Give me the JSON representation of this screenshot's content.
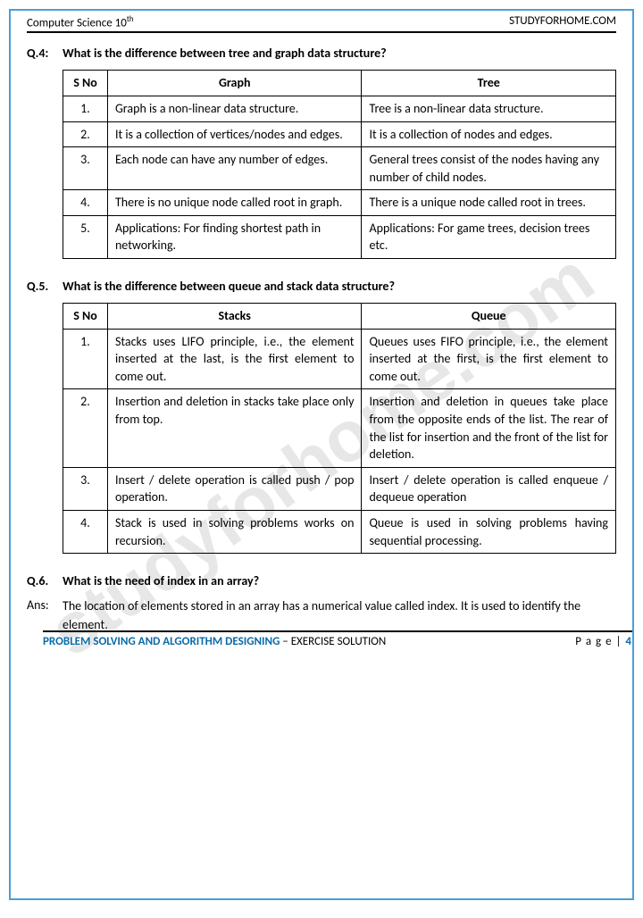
{
  "header": {
    "left_prefix": "Computer Science 10",
    "left_sup": "th",
    "right": "STUDYFORHOME.COM"
  },
  "watermark": "studyforhome.com",
  "q4": {
    "label": "Q.4:",
    "text": "What is the difference between tree and graph data structure?",
    "table": {
      "headers": {
        "sno": "S No",
        "c1": "Graph",
        "c2": "Tree"
      },
      "rows": [
        {
          "n": "1.",
          "a": "Graph is a non-linear data structure.",
          "b": "Tree is a non-linear data structure."
        },
        {
          "n": "2.",
          "a": "It is a collection of vertices/nodes and edges.",
          "b": "It is a collection of nodes and edges."
        },
        {
          "n": "3.",
          "a": "Each node can have any number of edges.",
          "b": "General trees consist of the nodes having any number of child nodes."
        },
        {
          "n": "4.",
          "a": "There is no unique node called root in graph.",
          "b": "There is a unique node called root in trees."
        },
        {
          "n": "5.",
          "a": "Applications: For finding shortest path in networking.",
          "b": "Applications: For game trees, decision trees etc."
        }
      ]
    }
  },
  "q5": {
    "label": "Q.5.",
    "text": "What is the difference between queue and stack data structure?",
    "table": {
      "headers": {
        "sno": "S No",
        "c1": "Stacks",
        "c2": "Queue"
      },
      "rows": [
        {
          "n": "1.",
          "a": "Stacks uses LIFO principle, i.e., the element inserted at the last, is the first element to come out.",
          "b": "Queues uses FIFO principle, i.e., the element inserted at the first, is the first element to come out."
        },
        {
          "n": "2.",
          "a": "Insertion and deletion in stacks take place only from top.",
          "b": "Insertion and deletion in queues take place from the opposite ends of the list. The rear of the list for insertion and the front of the list for deletion."
        },
        {
          "n": "3.",
          "a": "Insert / delete operation is called push / pop operation.",
          "b": "Insert / delete operation is called enqueue / dequeue operation"
        },
        {
          "n": "4.",
          "a": "Stack is used in solving problems works on recursion.",
          "b": "Queue is used in solving problems having sequential processing."
        }
      ]
    }
  },
  "q6": {
    "label": "Q.6.",
    "text": "What is the need of index in an array?",
    "ans_label": "Ans:",
    "ans": "The location of elements stored in an array has a numerical value called index. It is used to identify the element."
  },
  "footer": {
    "left_a": "PROBLEM SOLVING AND ALGORITHM DESIGNING",
    "left_b": " – EXERCISE SOLUTION",
    "right_label": "P a g e  | ",
    "right_num": "4"
  }
}
